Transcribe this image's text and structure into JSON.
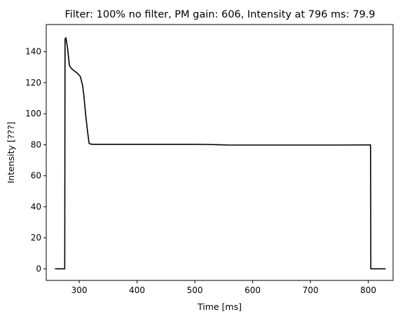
{
  "chart_data": {
    "type": "line",
    "title": "Filter: 100% no filter, PM gain: 606, Intensity at 796 ms: 79.9",
    "xlabel": "Time [ms]",
    "ylabel": "Intensity [???]",
    "xlim": [
      243,
      843
    ],
    "ylim": [
      -7.5,
      157.5
    ],
    "xticks": [
      300,
      400,
      500,
      600,
      700,
      800
    ],
    "yticks": [
      0,
      20,
      40,
      60,
      80,
      100,
      120,
      140
    ],
    "grid": false,
    "legend": "none",
    "series": [
      {
        "color": "#000000",
        "x": [
          258,
          275,
          275.5,
          277,
          280,
          283,
          287,
          292,
          297,
          302,
          306,
          308,
          311,
          314,
          317,
          319,
          322,
          330,
          350,
          400,
          450,
          500,
          520,
          540,
          560,
          600,
          650,
          700,
          750,
          800,
          804,
          804.5,
          806,
          830
        ],
        "y": [
          0,
          0,
          148,
          149,
          142,
          131,
          129,
          127.5,
          126,
          124,
          118,
          112,
          100,
          90,
          81,
          80.5,
          80.3,
          80.3,
          80.3,
          80.3,
          80.3,
          80.3,
          80.2,
          80,
          79.8,
          79.8,
          79.8,
          79.8,
          79.8,
          79.9,
          79.9,
          0,
          0,
          0
        ]
      }
    ]
  }
}
